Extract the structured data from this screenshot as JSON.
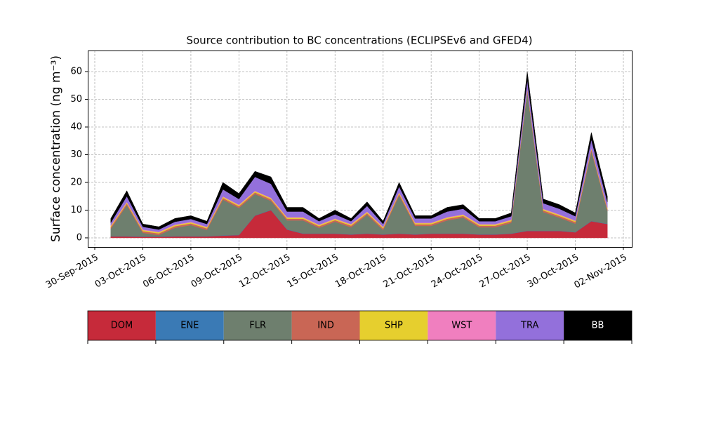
{
  "chart_data": {
    "type": "stacked_area",
    "title": "Source contribution to BC concentrations (ECLIPSEv6 and GFED4)",
    "y_label": "Surface concentration (ng m⁻³)",
    "x": [
      "2015-10-01",
      "2015-10-02",
      "2015-10-03",
      "2015-10-04",
      "2015-10-05",
      "2015-10-06",
      "2015-10-07",
      "2015-10-08",
      "2015-10-09",
      "2015-10-10",
      "2015-10-11",
      "2015-10-12",
      "2015-10-13",
      "2015-10-14",
      "2015-10-15",
      "2015-10-16",
      "2015-10-17",
      "2015-10-18",
      "2015-10-19",
      "2015-10-20",
      "2015-10-21",
      "2015-10-22",
      "2015-10-23",
      "2015-10-24",
      "2015-10-25",
      "2015-10-26",
      "2015-10-27",
      "2015-10-28",
      "2015-10-29",
      "2015-10-30",
      "2015-10-31",
      "2015-11-01"
    ],
    "series": [
      {
        "name": "DOM",
        "color": "#c62a3a",
        "values": [
          0.5,
          0.5,
          0.4,
          0.4,
          0.5,
          0.5,
          0.5,
          0.8,
          1,
          8,
          10,
          3,
          1.5,
          1.5,
          1.5,
          1.2,
          1.5,
          1.2,
          1.5,
          1.2,
          1.5,
          1.5,
          1.5,
          1.2,
          1.2,
          1.5,
          2.5,
          2.5,
          2.5,
          2,
          6,
          5
        ]
      },
      {
        "name": "ENE",
        "color": "#3a7ab5",
        "values": [
          0.1,
          0.1,
          0.1,
          0.1,
          0.1,
          0.1,
          0.1,
          0.1,
          0.1,
          0.1,
          0.1,
          0.1,
          0.1,
          0.1,
          0.1,
          0.1,
          0.1,
          0.1,
          0.1,
          0.1,
          0.1,
          0.1,
          0.1,
          0.1,
          0.1,
          0.1,
          0.1,
          0.1,
          0.1,
          0.1,
          0.1,
          0.1
        ]
      },
      {
        "name": "FLR",
        "color": "#6e7f6e",
        "values": [
          2.7,
          11.2,
          1.3,
          0.5,
          3.0,
          4.0,
          2.2,
          12.9,
          9.7,
          7.7,
          3.2,
          3.2,
          4.7,
          2.0,
          4.2,
          2.5,
          6.7,
          1.5,
          13.7,
          3.0,
          2.7,
          4.7,
          5.7,
          2.5,
          2.5,
          3.8,
          50.2,
          6.7,
          4.7,
          3.0,
          25.2,
          4.7
        ]
      },
      {
        "name": "IND",
        "color": "#c96655",
        "values": [
          0.6,
          0.6,
          0.6,
          0.6,
          0.6,
          0.6,
          0.6,
          0.6,
          0.6,
          0.6,
          0.6,
          0.6,
          0.6,
          0.6,
          0.6,
          0.6,
          0.6,
          0.6,
          0.6,
          0.6,
          0.6,
          0.6,
          0.6,
          0.6,
          0.6,
          0.6,
          0.6,
          0.6,
          0.6,
          0.6,
          0.6,
          0.6
        ]
      },
      {
        "name": "SHP",
        "color": "#e6cf2e",
        "values": [
          0.4,
          0.4,
          0.4,
          0.4,
          0.4,
          0.4,
          0.4,
          0.4,
          0.4,
          0.4,
          0.4,
          0.4,
          0.4,
          0.4,
          0.4,
          0.4,
          0.4,
          0.4,
          0.4,
          0.4,
          0.4,
          0.4,
          0.4,
          0.4,
          0.4,
          0.4,
          0.4,
          0.4,
          0.4,
          0.4,
          0.4,
          0.4
        ]
      },
      {
        "name": "WST",
        "color": "#f07fbf",
        "values": [
          0.2,
          0.2,
          0.2,
          0.2,
          0.2,
          0.2,
          0.2,
          0.2,
          0.2,
          0.2,
          0.2,
          0.2,
          0.2,
          0.2,
          0.2,
          0.2,
          0.2,
          0.2,
          0.2,
          0.2,
          0.2,
          0.2,
          0.2,
          0.2,
          0.2,
          0.2,
          0.2,
          0.2,
          0.2,
          0.2,
          0.2,
          0.2
        ]
      },
      {
        "name": "TRA",
        "color": "#9370db",
        "values": [
          1,
          2,
          1,
          0.8,
          1,
          1,
          1,
          2.5,
          2,
          5,
          5,
          2,
          2,
          1.2,
          1.5,
          1,
          2,
          1,
          2,
          1.5,
          1.5,
          2,
          2,
          1,
          1,
          1.2,
          3,
          2,
          2,
          1.5,
          3,
          2
        ]
      },
      {
        "name": "BB",
        "color": "#000000",
        "values": [
          1.5,
          2,
          1,
          1,
          1.2,
          1.2,
          1,
          2.5,
          2,
          2,
          2.5,
          1.5,
          1.5,
          1,
          1.5,
          1,
          1.5,
          1,
          1.5,
          1,
          1,
          1.5,
          1.5,
          1,
          1,
          1.2,
          3,
          1.5,
          1.5,
          1.2,
          2.5,
          2
        ]
      }
    ],
    "xlim": [
      "2015-09-30",
      "2015-11-02"
    ],
    "xticks": [
      {
        "value": "2015-09-30",
        "label": "30-Sep-2015"
      },
      {
        "value": "2015-10-03",
        "label": "03-Oct-2015"
      },
      {
        "value": "2015-10-06",
        "label": "06-Oct-2015"
      },
      {
        "value": "2015-10-09",
        "label": "09-Oct-2015"
      },
      {
        "value": "2015-10-12",
        "label": "12-Oct-2015"
      },
      {
        "value": "2015-10-15",
        "label": "15-Oct-2015"
      },
      {
        "value": "2015-10-18",
        "label": "18-Oct-2015"
      },
      {
        "value": "2015-10-21",
        "label": "21-Oct-2015"
      },
      {
        "value": "2015-10-24",
        "label": "24-Oct-2015"
      },
      {
        "value": "2015-10-27",
        "label": "27-Oct-2015"
      },
      {
        "value": "2015-10-30",
        "label": "30-Oct-2015"
      },
      {
        "value": "2015-11-02",
        "label": "02-Nov-2015"
      }
    ],
    "ylim": [
      -3.3,
      67.6
    ],
    "yticks": [
      0,
      10,
      20,
      30,
      40,
      50,
      60
    ],
    "grid": true
  }
}
